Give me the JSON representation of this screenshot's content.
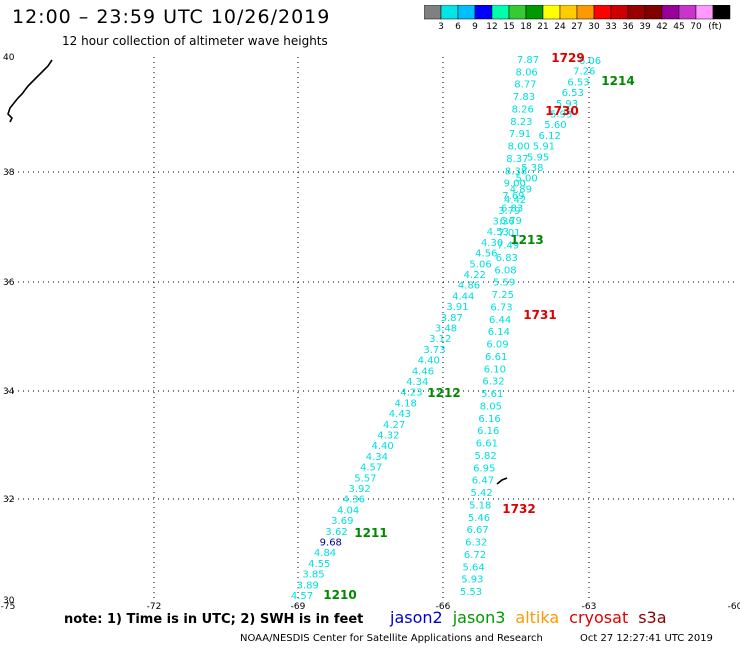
{
  "header": {
    "title": "12:00 – 23:59 UTC 10/26/2019",
    "subtitle": "12 hour collection of altimeter wave heights"
  },
  "colorbar": {
    "colors": [
      "#808080",
      "#00e5e5",
      "#00bfff",
      "#0000ff",
      "#00ffaa",
      "#33cc33",
      "#009900",
      "#ffff00",
      "#ffcc00",
      "#ff9900",
      "#ff0000",
      "#cc0000",
      "#990000",
      "#800000",
      "#990099",
      "#cc33cc",
      "#ff99ff",
      "#000000"
    ],
    "labels": [
      "3",
      "6",
      "9",
      "12",
      "15",
      "18",
      "21",
      "24",
      "27",
      "30",
      "33",
      "36",
      "39",
      "42",
      "45",
      "70",
      "(ft)"
    ]
  },
  "axes": {
    "x_ticks": [
      "-75",
      "-72",
      "-69",
      "-66",
      "-63",
      "-60"
    ],
    "y_ticks": [
      "40",
      "38",
      "36",
      "34",
      "32",
      "30"
    ]
  },
  "tracks": [
    {
      "name": "track-west",
      "color": "#00e0e0",
      "values": [
        "4.57",
        "3.89",
        "3.85",
        "4.55",
        "4.84",
        "9.68",
        "3.62",
        "3.69",
        "4.04",
        "4.36",
        "3.92",
        "5.57",
        "4.57",
        "4.34",
        "4.40",
        "4.32",
        "4.27",
        "4.43",
        "4.18",
        "4.23",
        "4.34",
        "4.46",
        "4.40",
        "3.73",
        "3.12",
        "3.48",
        "3.87",
        "3.91",
        "4.44",
        "4.86",
        "4.22",
        "5.06",
        "4.56",
        "4.30",
        "4.53",
        "3.36",
        "3.79",
        "4.42",
        "4.89",
        "5.00",
        "5.38",
        "5.95",
        "5.91",
        "6.12",
        "5.60",
        "5.93",
        "5.93",
        "6.53",
        "6.53",
        "7.26",
        "6.06"
      ],
      "special": {
        "5": "#000099"
      }
    },
    {
      "name": "track-east",
      "color": "#00e0e0",
      "values": [
        "5.53",
        "5.93",
        "5.64",
        "6.72",
        "6.32",
        "6.67",
        "5.46",
        "5.18",
        "5.42",
        "6.47",
        "6.95",
        "5.82",
        "6.61",
        "6.16",
        "6.16",
        "8.05",
        "5.61",
        "6.32",
        "6.10",
        "6.61",
        "6.09",
        "6.14",
        "6.44",
        "6.73",
        "7.25",
        "5.59",
        "6.08",
        "6.83",
        "7.49",
        "7.01",
        "6.79",
        "6.83",
        "7.69",
        "9.00",
        "8.38",
        "8.37",
        "8.00",
        "7.91",
        "8.23",
        "8.26",
        "7.83",
        "8.77",
        "8.06",
        "7.87"
      ]
    }
  ],
  "time_labels": [
    {
      "text": "1729",
      "color": "#dd0000"
    },
    {
      "text": "1214",
      "color": "#008800"
    },
    {
      "text": "1730",
      "color": "#dd0000"
    },
    {
      "text": "1213",
      "color": "#008800"
    },
    {
      "text": "1731",
      "color": "#dd0000"
    },
    {
      "text": "1212",
      "color": "#008800"
    },
    {
      "text": "1732",
      "color": "#dd0000"
    },
    {
      "text": "1211",
      "color": "#008800"
    },
    {
      "text": "1210",
      "color": "#008800"
    }
  ],
  "footer": {
    "note": "note: 1) Time is in UTC; 2) SWH is in feet",
    "satellites": [
      {
        "name": "jason2",
        "color": "#0000cc"
      },
      {
        "name": "jason3",
        "color": "#009900"
      },
      {
        "name": "altika",
        "color": "#ff9900"
      },
      {
        "name": "cryosat",
        "color": "#dd0000"
      },
      {
        "name": "s3a",
        "color": "#880000"
      }
    ],
    "credit": "NOAA/NESDIS Center for Satellite Applications and Research",
    "timestamp": "Oct 27 12:27:41 UTC 2019"
  }
}
